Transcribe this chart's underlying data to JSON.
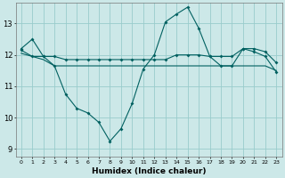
{
  "bg_color": "#cce8e8",
  "line_color": "#006060",
  "grid_color": "#99cccc",
  "xlabel": "Humidex (Indice chaleur)",
  "ylim": [
    8.75,
    13.65
  ],
  "xlim": [
    -0.5,
    23.5
  ],
  "yticks": [
    9,
    10,
    11,
    12,
    13
  ],
  "xticks": [
    0,
    1,
    2,
    3,
    4,
    5,
    6,
    7,
    8,
    9,
    10,
    11,
    12,
    13,
    14,
    15,
    16,
    17,
    18,
    19,
    20,
    21,
    22,
    23
  ],
  "line1_x": [
    0,
    1,
    2,
    3,
    4,
    5,
    6,
    7,
    8,
    9,
    10,
    11,
    12,
    13,
    14,
    15,
    16,
    17,
    18,
    19,
    20,
    21,
    22,
    23
  ],
  "line1_y": [
    12.2,
    12.5,
    11.95,
    11.65,
    10.75,
    10.3,
    10.15,
    9.85,
    9.25,
    9.65,
    10.45,
    11.55,
    12.0,
    13.05,
    13.3,
    13.52,
    12.85,
    11.95,
    11.65,
    11.65,
    12.2,
    12.1,
    11.95,
    11.45
  ],
  "line2_x": [
    0,
    1,
    2,
    3,
    4,
    5,
    6,
    7,
    8,
    9,
    10,
    11,
    12,
    13,
    14,
    15,
    16,
    17,
    18,
    19,
    20,
    21,
    22,
    23
  ],
  "line2_y": [
    12.15,
    11.95,
    11.95,
    11.95,
    11.85,
    11.85,
    11.85,
    11.85,
    11.85,
    11.85,
    11.85,
    11.85,
    11.85,
    11.85,
    12.0,
    12.0,
    12.0,
    11.95,
    11.95,
    11.95,
    12.2,
    12.2,
    12.1,
    11.75
  ],
  "line3_x": [
    0,
    2,
    3,
    10,
    11,
    12,
    13,
    14,
    15,
    16,
    17,
    18,
    19,
    20,
    21,
    22,
    23
  ],
  "line3_y": [
    12.05,
    11.85,
    11.65,
    11.65,
    11.65,
    11.65,
    11.65,
    11.65,
    11.65,
    11.65,
    11.65,
    11.65,
    11.65,
    11.65,
    11.65,
    11.65,
    11.5
  ]
}
